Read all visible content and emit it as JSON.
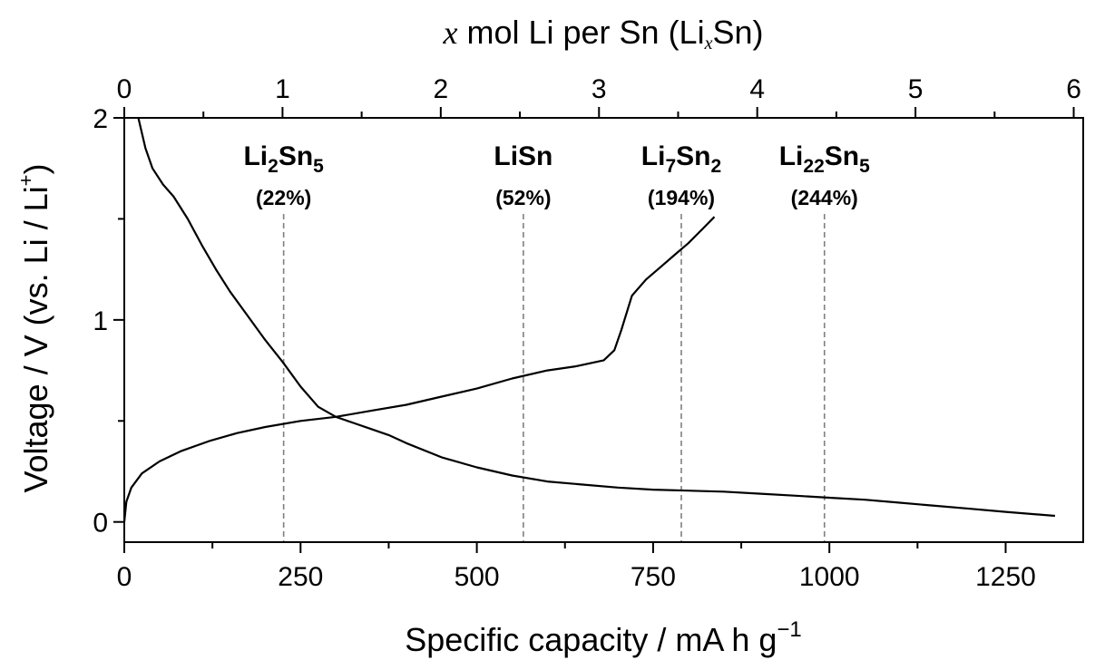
{
  "chart_data": {
    "type": "line",
    "xlabel_prefix": "Specific capacity / mA h g",
    "xlabel_sup": "−1",
    "x2label_var": "x",
    "x2label_text": " mol Li per Sn (Li",
    "x2label_sub": "x",
    "x2label_end": "Sn)",
    "ylabel_main": "Voltage / V (vs. Li / Li",
    "ylabel_sup": "+",
    "ylabel_end": ")",
    "xlim": [
      0,
      1360
    ],
    "ylim": [
      -0.1,
      2.0
    ],
    "x2lim": [
      0,
      6.06
    ],
    "x_ticks": [
      0,
      250,
      500,
      750,
      1000,
      1250
    ],
    "x_minor_ticks": [
      125,
      375,
      625,
      875,
      1125
    ],
    "y_ticks": [
      0,
      1,
      2
    ],
    "y_minor_ticks": [
      0.5,
      1.5
    ],
    "x2_ticks": [
      0,
      1,
      2,
      3,
      4,
      5,
      6
    ],
    "x2_minor_ticks": [
      0.5,
      1.5,
      2.5,
      3.5,
      4.5,
      5.5
    ],
    "series": [
      {
        "x": [
          20,
          30,
          40,
          55,
          70,
          90,
          110,
          130,
          150,
          175,
          200,
          225,
          250,
          275,
          300,
          325,
          350,
          375,
          400,
          450,
          500,
          550,
          600,
          650,
          700,
          750,
          800,
          850,
          900,
          950,
          1000,
          1050,
          1100,
          1150,
          1200,
          1250,
          1320
        ],
        "y": [
          2.0,
          1.85,
          1.75,
          1.67,
          1.61,
          1.5,
          1.37,
          1.25,
          1.14,
          1.02,
          0.9,
          0.79,
          0.67,
          0.57,
          0.52,
          0.49,
          0.46,
          0.43,
          0.39,
          0.32,
          0.27,
          0.23,
          0.2,
          0.185,
          0.17,
          0.16,
          0.155,
          0.15,
          0.14,
          0.13,
          0.12,
          0.11,
          0.095,
          0.08,
          0.065,
          0.05,
          0.03
        ]
      },
      {
        "x": [
          0,
          3,
          10,
          25,
          50,
          80,
          120,
          160,
          200,
          250,
          300,
          350,
          400,
          450,
          500,
          550,
          600,
          640,
          680,
          695,
          705,
          720,
          740,
          760,
          780,
          800,
          820,
          837
        ],
        "y": [
          0.0,
          0.1,
          0.17,
          0.24,
          0.3,
          0.35,
          0.4,
          0.44,
          0.47,
          0.5,
          0.52,
          0.55,
          0.58,
          0.62,
          0.66,
          0.71,
          0.75,
          0.77,
          0.8,
          0.85,
          0.95,
          1.12,
          1.2,
          1.26,
          1.32,
          1.38,
          1.45,
          1.51
        ]
      }
    ],
    "phase_lines": [
      {
        "x": 226,
        "name": "Li",
        "sub1": "2",
        "name2": "Sn",
        "sub2": "5",
        "pct": "(22%)"
      },
      {
        "x": 566,
        "name": "LiSn",
        "sub1": "",
        "name2": "",
        "sub2": "",
        "pct": "(52%)"
      },
      {
        "x": 790,
        "name": "Li",
        "sub1": "7",
        "name2": "Sn",
        "sub2": "2",
        "pct": "(194%)"
      },
      {
        "x": 993,
        "name": "Li",
        "sub1": "22",
        "name2": "Sn",
        "sub2": "5",
        "pct": "(244%)"
      }
    ]
  }
}
